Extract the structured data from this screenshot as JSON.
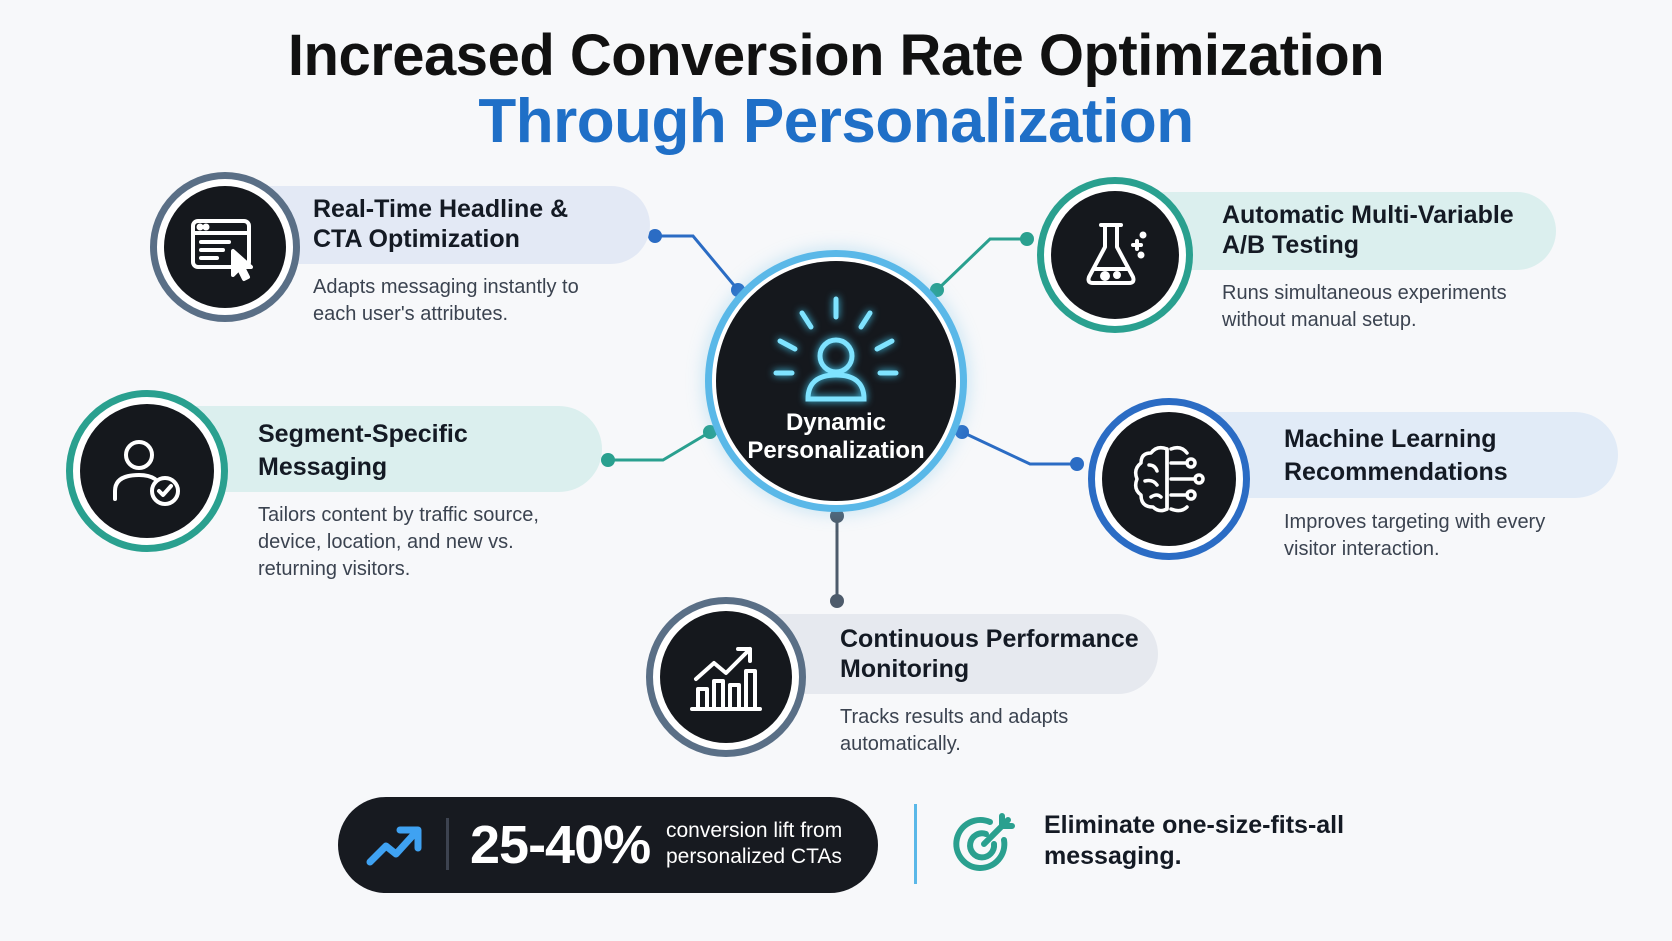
{
  "header": {
    "title_line1": "Increased Conversion Rate Optimization",
    "title_line2": "Through Personalization"
  },
  "hub": {
    "label": "Dynamic Personalization",
    "icon": "user-radiating-icon"
  },
  "features": [
    {
      "title": "Real-Time Headline & CTA Optimization",
      "description": "Adapts messaging instantly to each user's attributes.",
      "icon": "browser-cursor-icon"
    },
    {
      "title": "Automatic Multi-Variable A/B Testing",
      "description": "Runs simultaneous experiments without manual setup.",
      "icon": "flask-icon"
    },
    {
      "title": "Segment-Specific Messaging",
      "description": "Tailors content by traffic source, device, location, and new vs. returning visitors.",
      "icon": "user-check-icon"
    },
    {
      "title": "Machine Learning Recommendations",
      "description": "Improves targeting with every visitor interaction.",
      "icon": "brain-circuit-icon"
    },
    {
      "title": "Continuous Performance Monitoring",
      "description": "Tracks results and adapts automatically.",
      "icon": "growth-chart-icon"
    }
  ],
  "stat": {
    "value": "25-40%",
    "caption": "conversion lift from personalized CTAs",
    "icon": "trend-up-icon"
  },
  "tagline": {
    "text": "Eliminate one-size-fits-all messaging.",
    "icon": "target-icon"
  },
  "colors": {
    "title_blue": "#1f6fc7",
    "teal": "#2aa08f",
    "blue": "#2b6cc4",
    "slate": "#5a6f86",
    "hub_glow": "#5ab8e8",
    "dark": "#15181d"
  }
}
